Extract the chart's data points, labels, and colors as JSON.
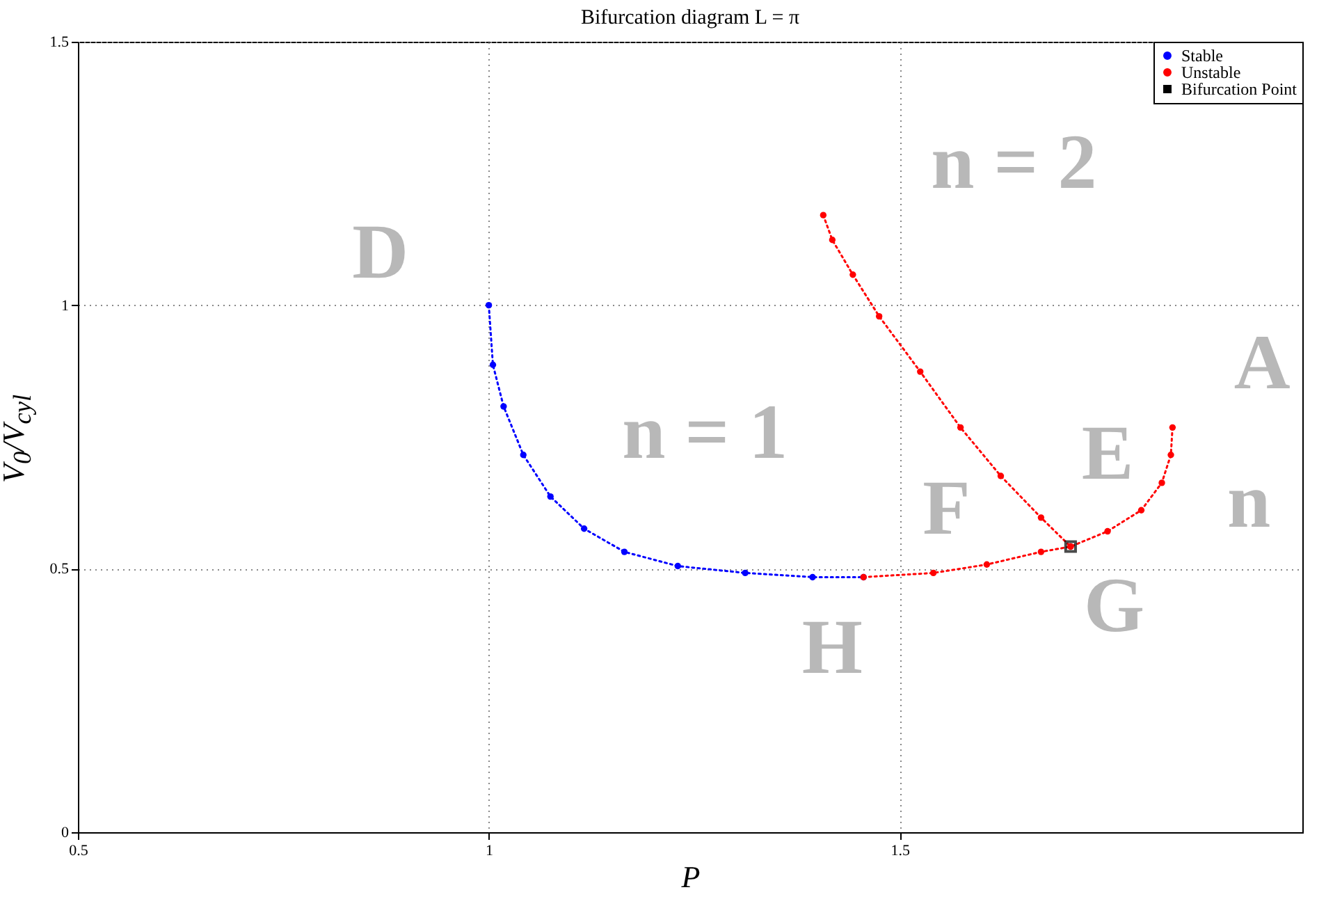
{
  "chart_data": {
    "type": "line",
    "title": "Bifurcation diagram L = π",
    "xlabel": "P",
    "ylabel": "V$_{0}$/V$_{cyl}$",
    "xlim": [
      0.5,
      1.99
    ],
    "xticks": [
      0.5,
      1,
      1.5
    ],
    "ylim": [
      0,
      1.5
    ],
    "yticks": [
      0,
      0.5,
      1,
      1.5
    ],
    "grid": true,
    "legend": "top right",
    "annotations": [
      "D",
      "n = 2",
      "n = 1",
      "E",
      "F",
      "G",
      "H",
      "A",
      "n"
    ],
    "series": [
      {
        "name": "Stable",
        "color": "#0000ff",
        "type": "line",
        "line_style": "dotted",
        "marker": "circle",
        "x": [
          1.0,
          1.005,
          1.018,
          1.042,
          1.075,
          1.116,
          1.165,
          1.23,
          1.312,
          1.394,
          1.456
        ],
        "values": [
          1.0,
          0.887,
          0.808,
          0.716,
          0.637,
          0.576,
          0.532,
          0.505,
          0.492,
          0.484,
          0.484
        ]
      },
      {
        "name": "Unstable",
        "color": "#ff0000",
        "type": "line",
        "line_style": "dotted",
        "marker": "circle",
        "x": [
          1.456,
          1.541,
          1.606,
          1.672,
          1.708,
          1.753,
          1.794,
          1.819,
          1.83,
          1.832
        ],
        "values": [
          0.484,
          0.492,
          0.508,
          0.532,
          0.542,
          0.571,
          0.611,
          0.663,
          0.716,
          0.768
        ]
      },
      {
        "color": "#ff0000",
        "type": "line",
        "line_style": "dotted",
        "marker": "circle",
        "x": [
          1.407,
          1.418,
          1.443,
          1.475,
          1.525,
          1.574,
          1.623,
          1.672,
          1.708
        ],
        "values": [
          1.171,
          1.124,
          1.058,
          0.979,
          0.874,
          0.768,
          0.676,
          0.597,
          0.542
        ]
      },
      {
        "name": "Bifurcation Point",
        "color": "#000000",
        "type": "scatter",
        "marker": "square",
        "x": [
          1.708
        ],
        "values": [
          0.542
        ]
      }
    ]
  }
}
